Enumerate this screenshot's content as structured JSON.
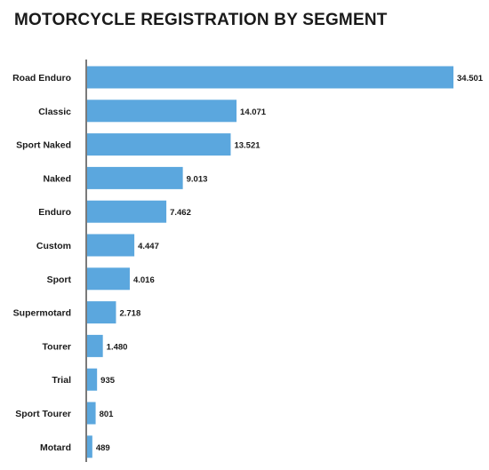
{
  "chart_data": {
    "type": "bar",
    "orientation": "horizontal",
    "title": "MOTORCYCLE REGISTRATION BY SEGMENT",
    "categories": [
      "Road Enduro",
      "Classic",
      "Sport Naked",
      "Naked",
      "Enduro",
      "Custom",
      "Sport",
      "Supermotard",
      "Tourer",
      "Trial",
      "Sport Tourer",
      "Motard"
    ],
    "values": [
      34501,
      14071,
      13521,
      9013,
      7462,
      4447,
      4016,
      2718,
      1480,
      935,
      801,
      489
    ],
    "value_labels": [
      "34.501",
      "14.071",
      "13.521",
      "9.013",
      "7.462",
      "4.447",
      "4.016",
      "2.718",
      "1.480",
      "935",
      "801",
      "489"
    ],
    "xlim": [
      0,
      34501
    ],
    "grid": false,
    "legend": "none",
    "bar_color": "#5ba7de"
  }
}
